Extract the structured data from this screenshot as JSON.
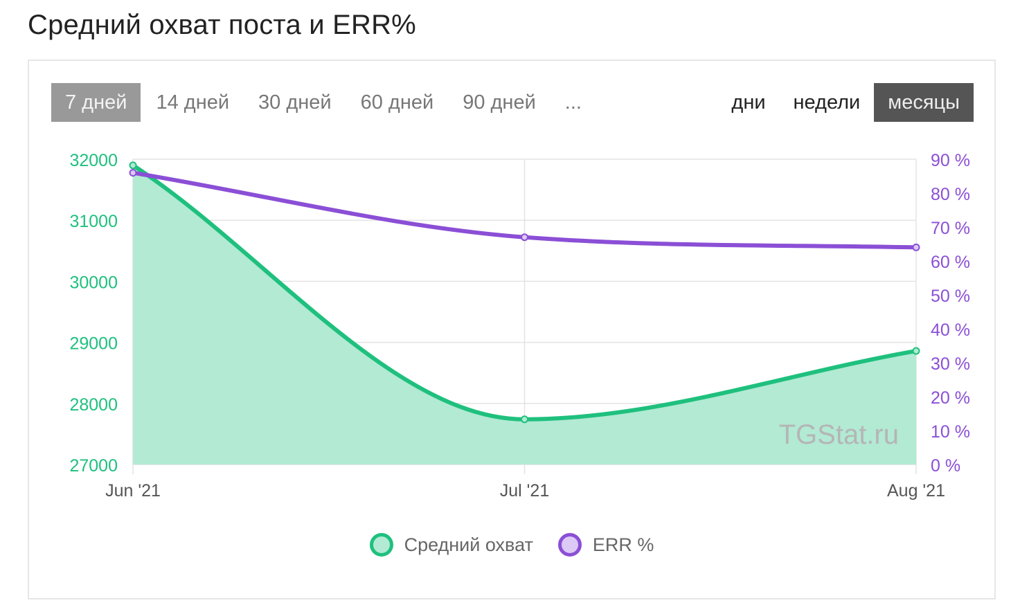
{
  "title": "Средний охват поста и ERR%",
  "range_buttons": [
    {
      "label": "7 дней",
      "active": true
    },
    {
      "label": "14 дней",
      "active": false
    },
    {
      "label": "30 дней",
      "active": false
    },
    {
      "label": "60 дней",
      "active": false
    },
    {
      "label": "90 дней",
      "active": false
    },
    {
      "label": "...",
      "active": false
    }
  ],
  "granularity_buttons": [
    {
      "label": "дни",
      "active": false
    },
    {
      "label": "недели",
      "active": false
    },
    {
      "label": "месяцы",
      "active": true
    }
  ],
  "colors": {
    "reach_line": "#1fc07e",
    "reach_fill": "#b2ead4",
    "err_line": "#8b4fd6",
    "err_fill": "#dcc9f5",
    "left_axis": "#1fc07e",
    "right_axis": "#8b4fd6",
    "grid": "#e3e3e3",
    "watermark": "#b5b5b5"
  },
  "watermark": "TGStat.ru",
  "chart_data": {
    "type": "line",
    "categories": [
      "Jun '21",
      "Jul '21",
      "Aug '21"
    ],
    "series": [
      {
        "name": "Средний охват",
        "axis": "left",
        "values": [
          31900,
          27740,
          28860
        ],
        "fill": true
      },
      {
        "name": "ERR %",
        "axis": "right",
        "values": [
          86,
          67,
          64
        ],
        "fill": false
      }
    ],
    "y_left": {
      "min": 27000,
      "max": 32000,
      "ticks": [
        "27000",
        "28000",
        "29000",
        "30000",
        "31000",
        "32000"
      ]
    },
    "y_right": {
      "min": 0,
      "max": 90,
      "ticks": [
        "0 %",
        "10 %",
        "20 %",
        "30 %",
        "40 %",
        "50 %",
        "60 %",
        "70 %",
        "80 %",
        "90 %"
      ]
    },
    "grid": true,
    "legend": "bottom"
  }
}
